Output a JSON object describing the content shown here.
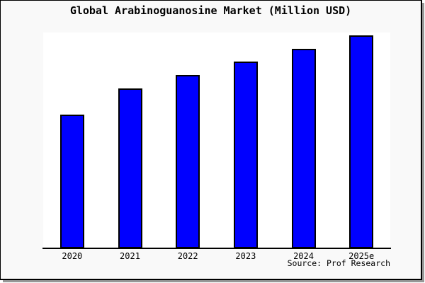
{
  "chart_data": {
    "type": "bar",
    "title": "Global Arabinoguanosine Market (Million USD)",
    "categories": [
      "2020",
      "2021",
      "2022",
      "2023",
      "2024",
      "2025e"
    ],
    "values": [
      62.0,
      74.1,
      80.3,
      86.6,
      92.5,
      98.7
    ],
    "value_scale_note": "no y-axis ticks shown; values are relative bar heights in % of plot height",
    "ylim": [
      0,
      100
    ],
    "xlabel": "",
    "ylabel": "",
    "grid": false,
    "legend": false,
    "bar_color": "#0000ff",
    "bar_border_color": "#000000",
    "plot_background": "#ffffff",
    "frame_background": "#f9f9f9",
    "frame_border_color": "#000000",
    "shadow_color": "#979797",
    "source": "Source: Prof Research"
  }
}
